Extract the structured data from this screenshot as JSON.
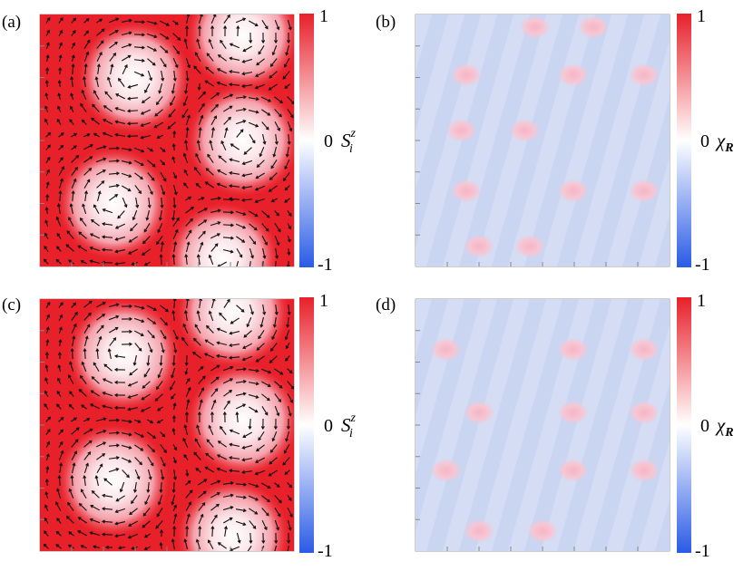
{
  "panels": [
    {
      "id": "a",
      "label": "(a)",
      "kind": "spin",
      "quantity": "S",
      "quantity_sup": "z",
      "quantity_sub": "i",
      "colorbar": {
        "max": "1",
        "mid": "0",
        "min": "-1"
      },
      "texture_centers": [
        [
          0.37,
          0.25
        ],
        [
          0.8,
          0.08
        ],
        [
          0.8,
          0.5
        ],
        [
          0.29,
          0.75
        ],
        [
          0.72,
          0.97
        ]
      ]
    },
    {
      "id": "b",
      "label": "(b)",
      "kind": "chirality",
      "quantity": "χ",
      "quantity_sub": "R",
      "colorbar": {
        "max": "1",
        "mid": "0",
        "min": "-1"
      },
      "hot_spots": [
        [
          0.2,
          0.24
        ],
        [
          0.62,
          0.24
        ],
        [
          0.9,
          0.24
        ],
        [
          0.18,
          0.46
        ],
        [
          0.43,
          0.46
        ],
        [
          0.2,
          0.7
        ],
        [
          0.62,
          0.7
        ],
        [
          0.9,
          0.7
        ],
        [
          0.25,
          0.92
        ],
        [
          0.45,
          0.92
        ],
        [
          0.7,
          0.05
        ],
        [
          0.47,
          0.05
        ]
      ]
    },
    {
      "id": "c",
      "label": "(c)",
      "kind": "spin",
      "quantity": "S",
      "quantity_sup": "z",
      "quantity_sub": "i",
      "colorbar": {
        "max": "1",
        "mid": "0",
        "min": "-1"
      },
      "texture_centers": [
        [
          0.33,
          0.22
        ],
        [
          0.76,
          0.05
        ],
        [
          0.8,
          0.48
        ],
        [
          0.29,
          0.72
        ],
        [
          0.76,
          0.94
        ]
      ]
    },
    {
      "id": "d",
      "label": "(d)",
      "kind": "chirality",
      "quantity": "χ",
      "quantity_sub": "R",
      "colorbar": {
        "max": "1",
        "mid": "0",
        "min": "-1"
      },
      "hot_spots": [
        [
          0.12,
          0.2
        ],
        [
          0.62,
          0.2
        ],
        [
          0.9,
          0.2
        ],
        [
          0.25,
          0.45
        ],
        [
          0.62,
          0.45
        ],
        [
          0.9,
          0.45
        ],
        [
          0.12,
          0.68
        ],
        [
          0.62,
          0.68
        ],
        [
          0.9,
          0.68
        ],
        [
          0.25,
          0.92
        ],
        [
          0.5,
          0.92
        ]
      ]
    }
  ],
  "colors": {
    "high": "#e8202a",
    "zero": "#ffffff",
    "low": "#2a5be6",
    "chirality_base": "#c9d5f1",
    "chirality_hot": "#f7c1cf"
  }
}
